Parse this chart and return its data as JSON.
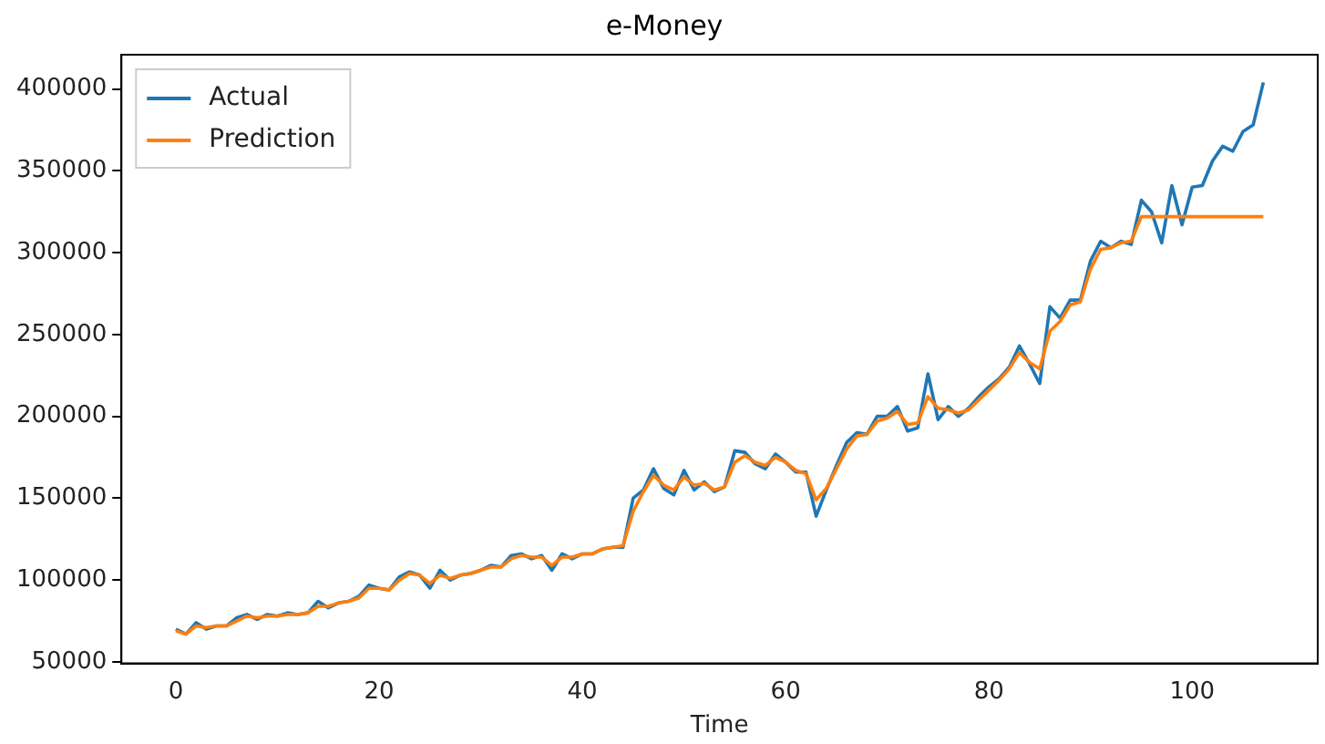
{
  "chart_data": {
    "type": "line",
    "title": "e-Money",
    "xlabel": "Time",
    "x": [
      0,
      1,
      2,
      3,
      4,
      5,
      6,
      7,
      8,
      9,
      10,
      11,
      12,
      13,
      14,
      15,
      16,
      17,
      18,
      19,
      20,
      21,
      22,
      23,
      24,
      25,
      26,
      27,
      28,
      29,
      30,
      31,
      32,
      33,
      34,
      35,
      36,
      37,
      38,
      39,
      40,
      41,
      42,
      43,
      44,
      45,
      46,
      47,
      48,
      49,
      50,
      51,
      52,
      53,
      54,
      55,
      56,
      57,
      58,
      59,
      60,
      61,
      62,
      63,
      64,
      65,
      66,
      67,
      68,
      69,
      70,
      71,
      72,
      73,
      74,
      75,
      76,
      77,
      78,
      79,
      80,
      81,
      82,
      83,
      84,
      85,
      86,
      87,
      88,
      89,
      90,
      91,
      92,
      93,
      94,
      95,
      96,
      97,
      98,
      99,
      100,
      101,
      102,
      103,
      104,
      105,
      106,
      107
    ],
    "series": [
      {
        "name": "Actual",
        "color": "#1f77b4",
        "values": [
          70000,
          67000,
          74000,
          70000,
          72000,
          72000,
          77000,
          79000,
          76000,
          79000,
          78000,
          80000,
          79000,
          80000,
          87000,
          83000,
          86000,
          87000,
          90000,
          97000,
          95000,
          94000,
          102000,
          105000,
          103000,
          95000,
          106000,
          100000,
          103000,
          104000,
          106000,
          109000,
          108000,
          115000,
          116000,
          113000,
          115000,
          106000,
          116000,
          113000,
          116000,
          116000,
          119000,
          120000,
          120000,
          150000,
          155000,
          168000,
          156000,
          152000,
          167000,
          155000,
          160000,
          154000,
          157000,
          179000,
          178000,
          171000,
          168000,
          177000,
          172000,
          166000,
          166000,
          139000,
          155000,
          170000,
          184000,
          190000,
          189000,
          200000,
          200000,
          206000,
          191000,
          193000,
          226000,
          198000,
          206000,
          200000,
          205000,
          212000,
          218000,
          223000,
          230000,
          243000,
          232000,
          220000,
          267000,
          260000,
          271000,
          271000,
          295000,
          307000,
          303000,
          307000,
          305000,
          332000,
          325000,
          306000,
          341000,
          317000,
          340000,
          341000,
          356000,
          365000,
          362000,
          374000,
          378000,
          404000
        ]
      },
      {
        "name": "Prediction",
        "color": "#ff7f0e",
        "values": [
          69000,
          67000,
          72000,
          71000,
          72000,
          72000,
          75000,
          78000,
          77000,
          78000,
          78000,
          79000,
          79000,
          80000,
          84000,
          84000,
          86000,
          87000,
          89000,
          95000,
          95000,
          94000,
          100000,
          104000,
          103000,
          98000,
          103000,
          101000,
          103000,
          104000,
          106000,
          108000,
          108000,
          113000,
          115000,
          114000,
          114000,
          109000,
          114000,
          114000,
          116000,
          116000,
          119000,
          120000,
          121000,
          142000,
          154000,
          164000,
          158000,
          155000,
          163000,
          158000,
          159000,
          155000,
          157000,
          172000,
          176000,
          172000,
          170000,
          175000,
          172000,
          167000,
          165000,
          149000,
          156000,
          168000,
          180000,
          188000,
          189000,
          197000,
          199000,
          203000,
          195000,
          196000,
          212000,
          205000,
          204000,
          202000,
          204000,
          210000,
          216000,
          222000,
          229000,
          239000,
          233000,
          229000,
          252000,
          258000,
          268000,
          270000,
          290000,
          302000,
          303000,
          306000,
          307000,
          322000,
          322000,
          322000,
          322000,
          322000,
          322000,
          322000,
          322000,
          322000,
          322000,
          322000,
          322000,
          322000
        ]
      }
    ],
    "xlim": [
      -5.35,
      112.35
    ],
    "xticks": [
      0,
      20,
      40,
      60,
      80,
      100
    ],
    "ylim": [
      49100,
      420900
    ],
    "yticks": [
      50000,
      100000,
      150000,
      200000,
      250000,
      300000,
      350000,
      400000
    ],
    "grid": false,
    "legend": "top left",
    "marker": "none",
    "line_style": "solid"
  }
}
